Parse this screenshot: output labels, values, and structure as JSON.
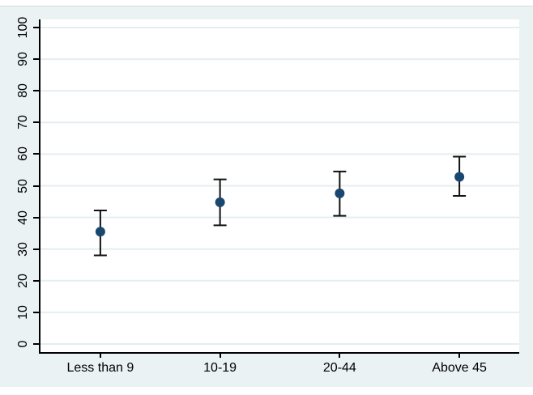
{
  "chart_data": {
    "type": "scatter",
    "subtype": "point_estimates_with_ci_errorbars",
    "title": "",
    "xlabel": "",
    "ylabel": "",
    "categories": [
      "Less than 9",
      "10-19",
      "20-44",
      "Above 45"
    ],
    "series": [
      {
        "name": "estimate",
        "values": [
          35.5,
          44.8,
          47.6,
          52.8
        ],
        "ci_low": [
          28.0,
          37.5,
          40.5,
          46.8
        ],
        "ci_high": [
          42.2,
          52.0,
          54.5,
          59.2
        ]
      }
    ],
    "ylim": [
      0,
      100
    ],
    "yticks": [
      0,
      10,
      20,
      30,
      40,
      50,
      60,
      70,
      80,
      90,
      100
    ],
    "grid": "horizontal",
    "legend_position": "none",
    "y_tick_label_rotation_deg": 90
  },
  "style": {
    "page_background": "#ffffff",
    "graph_background": "#eaf2f3",
    "plot_background": "#ffffff",
    "gridline_color": "#e4eef1",
    "axis_color": "#000000",
    "tick_text_color": "#000000",
    "marker_color": "#1a476f",
    "errorbar_color": "#111111"
  }
}
